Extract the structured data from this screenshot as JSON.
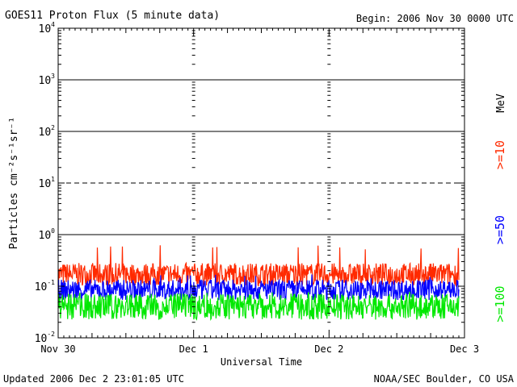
{
  "header": {
    "title": "GOES11 Proton Flux (5 minute data)",
    "begin": "Begin: 2006 Nov 30 0000 UTC"
  },
  "footer": {
    "updated": "Updated 2006 Dec  2 23:01:05 UTC",
    "source": "NOAA/SEC Boulder, CO USA"
  },
  "chart_data": {
    "type": "line",
    "title": "GOES11 Proton Flux (5 minute data)",
    "xlabel": "Universal Time",
    "ylabel": "Particles cm⁻²s⁻¹sr⁻¹",
    "yscale": "log",
    "ylim": [
      0.01,
      10000
    ],
    "xlim_days": [
      0,
      3
    ],
    "x_tick_labels": [
      "Nov 30",
      "Dec 1",
      "Dec 2",
      "Dec 3"
    ],
    "y_tick_labels": [
      {
        "base": "10",
        "exp": "-2"
      },
      {
        "base": "10",
        "exp": "-1"
      },
      {
        "base": "10",
        "exp": "0"
      },
      {
        "base": "10",
        "exp": "1"
      },
      {
        "base": "10",
        "exp": "2"
      },
      {
        "base": "10",
        "exp": "3"
      },
      {
        "base": "10",
        "exp": "4"
      }
    ],
    "right_axis_label": "MeV",
    "reference_lines": [
      {
        "value": 1,
        "style": "solid"
      },
      {
        "value": 10,
        "style": "dashed"
      },
      {
        "value": 100,
        "style": "solid"
      },
      {
        "value": 1000,
        "style": "solid"
      }
    ],
    "series": [
      {
        "name": ">=10",
        "color": "#ff2a00",
        "baseline": 0.17,
        "noise": 0.22,
        "peak": 0.65
      },
      {
        "name": ">=50",
        "color": "#0000ff",
        "baseline": 0.085,
        "noise": 0.2,
        "peak": 0.17
      },
      {
        "name": ">=100",
        "color": "#00e800",
        "baseline": 0.04,
        "noise": 0.25,
        "peak": 0.08
      }
    ],
    "grid": false
  }
}
